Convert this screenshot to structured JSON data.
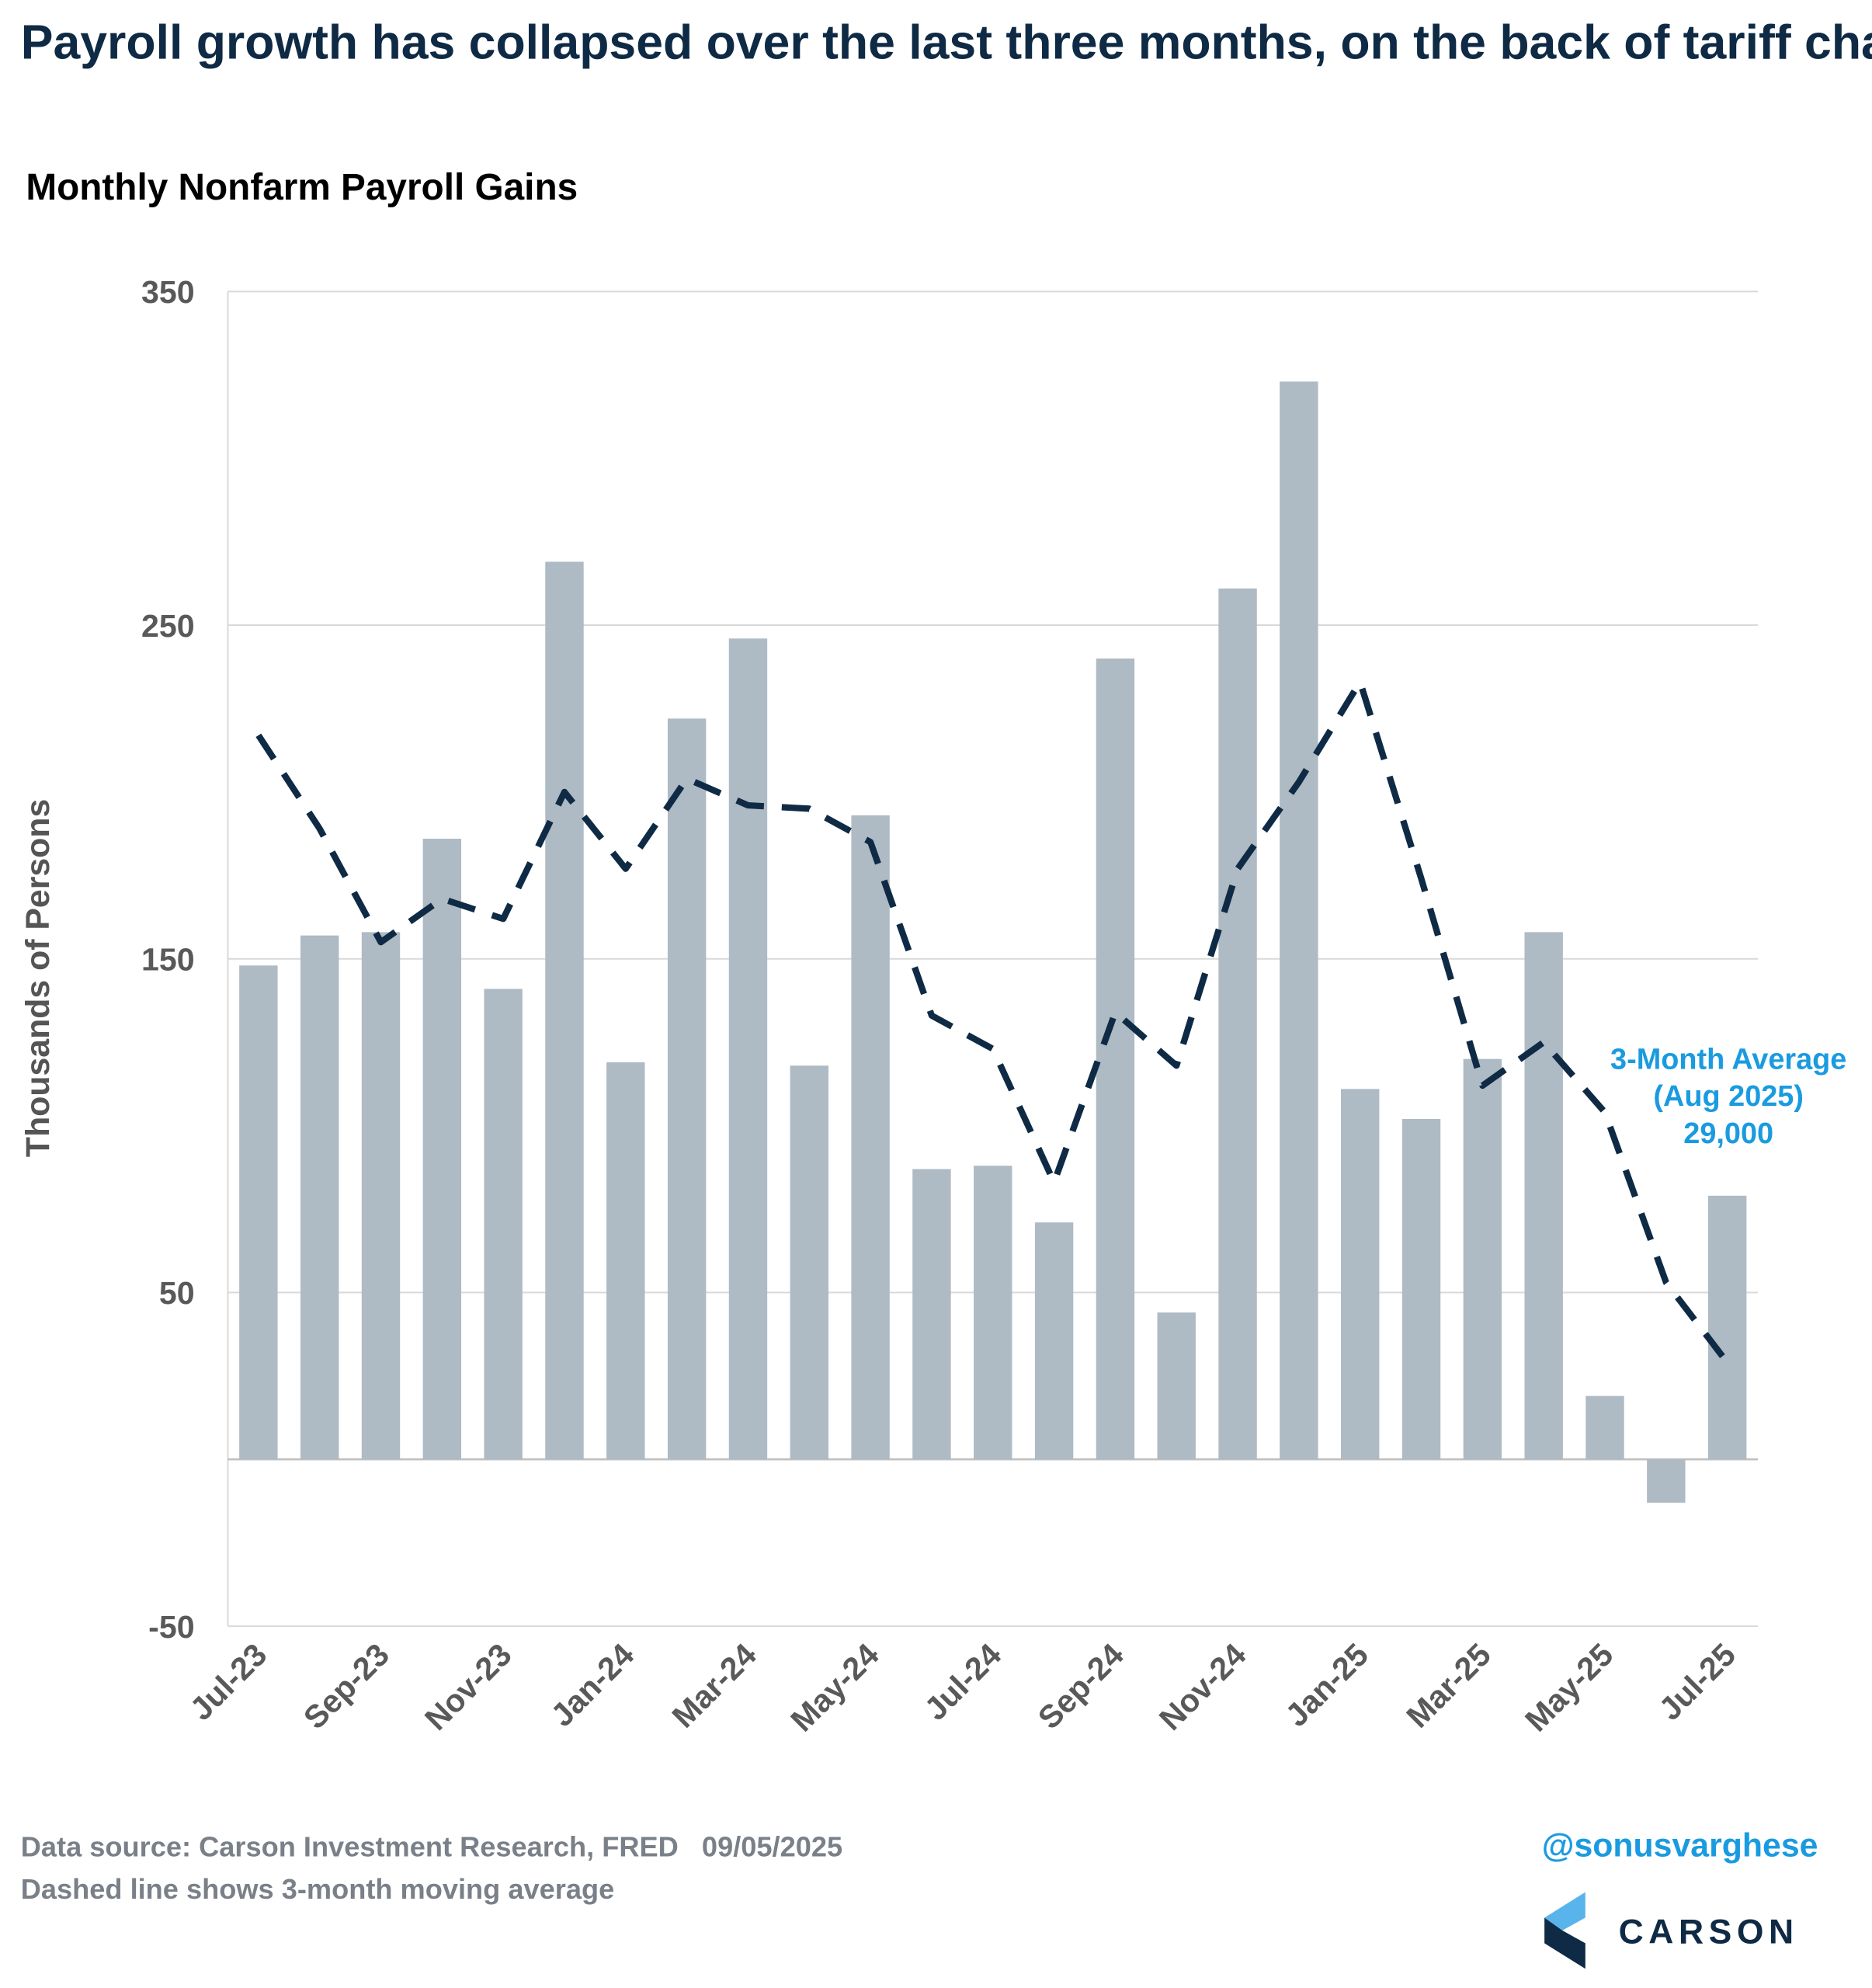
{
  "chart_data": {
    "type": "bar",
    "title": "Payroll growth has collapsed over the last three months, on the back of tariff chaos",
    "subtitle": "Monthly Nonfarm Payroll Gains",
    "y_label": "Thousands of Persons",
    "categories": [
      "Jul-23",
      null,
      "Sep-23",
      null,
      "Nov-23",
      null,
      "Jan-24",
      null,
      "Mar-24",
      null,
      "May-24",
      null,
      "Jul-24",
      null,
      "Sep-24",
      null,
      "Nov-24",
      null,
      "Jan-25",
      null,
      "Mar-25",
      null,
      "May-25",
      null,
      "Jul-25"
    ],
    "series": [
      {
        "type": "bar",
        "color": "#aebac4",
        "values": [
          148,
          157,
          158,
          186,
          141,
          269,
          119,
          222,
          246,
          118,
          193,
          87,
          88,
          71,
          240,
          44,
          261,
          323,
          111,
          102,
          120,
          158,
          19,
          -13,
          79
        ]
      },
      {
        "type": "line",
        "color": "#0f2a44",
        "dashed": true,
        "values": [
          217,
          189,
          155,
          168,
          162,
          200,
          177,
          204,
          196,
          195,
          185,
          133,
          123,
          83,
          134,
          118,
          177,
          203,
          233,
          174,
          112,
          125,
          104,
          53,
          29
        ]
      }
    ],
    "ylim": [
      -50,
      350
    ],
    "yticks": [
      -50,
      50,
      150,
      250,
      350
    ],
    "grid": true,
    "annotation": [
      "3-Month Average",
      "(Aug 2025)",
      "29,000"
    ],
    "annotation_color": "#1a9be0",
    "footer": [
      "Data source: Carson Investment Research, FRED   09/05/2025",
      "Dashed line shows 3-month moving average"
    ],
    "handle": "@sonusvarghese",
    "brand": "CARSON"
  }
}
